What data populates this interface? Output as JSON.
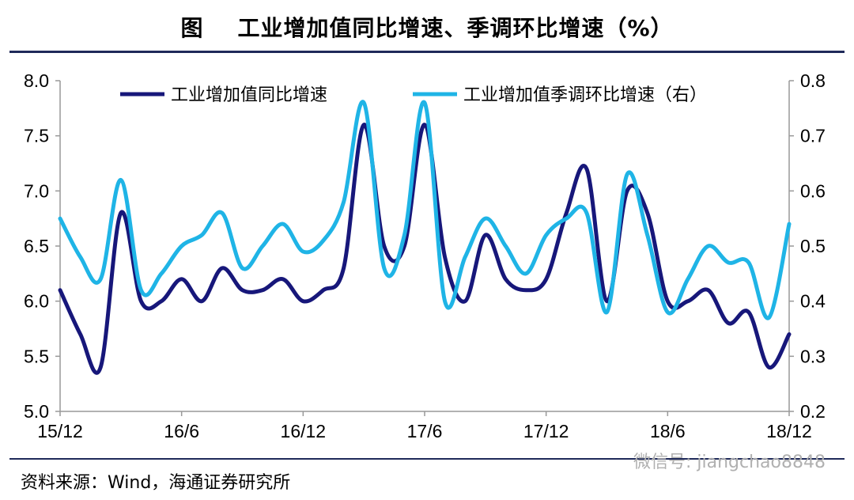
{
  "title": "图    工业增加值同比增速、季调环比增速（%）",
  "source": "资料来源：Wind，海通证券研究所",
  "watermark": "微信号: jiangchao8848",
  "colors": {
    "series1": "#17177a",
    "series2": "#1fb4e6",
    "axis": "#999999",
    "rule": "#1f2a5a"
  },
  "chart_data": {
    "type": "line",
    "x_tick_labels": [
      "15/12",
      "16/6",
      "16/12",
      "17/6",
      "17/12",
      "18/6",
      "18/12"
    ],
    "x": [
      "15/12",
      "16/1",
      "16/2",
      "16/3",
      "16/4",
      "16/5",
      "16/6",
      "16/7",
      "16/8",
      "16/9",
      "16/10",
      "16/11",
      "16/12",
      "17/1",
      "17/2",
      "17/3",
      "17/4",
      "17/5",
      "17/6",
      "17/7",
      "17/8",
      "17/9",
      "17/10",
      "17/11",
      "17/12",
      "18/1",
      "18/2",
      "18/3",
      "18/4",
      "18/5",
      "18/6",
      "18/7",
      "18/8",
      "18/9",
      "18/10",
      "18/11",
      "18/12"
    ],
    "left_axis": {
      "ylim": [
        5.0,
        8.0
      ],
      "ticks": [
        "5.0",
        "5.5",
        "6.0",
        "6.5",
        "7.0",
        "7.5",
        "8.0"
      ]
    },
    "right_axis": {
      "ylim": [
        0.2,
        0.8
      ],
      "ticks": [
        "0.2",
        "0.3",
        "0.4",
        "0.5",
        "0.6",
        "0.7",
        "0.8"
      ]
    },
    "series": [
      {
        "name": "工业增加值同比增速",
        "axis": "left",
        "values": [
          6.1,
          5.7,
          5.4,
          6.8,
          6.0,
          6.0,
          6.2,
          6.0,
          6.3,
          6.1,
          6.1,
          6.2,
          6.0,
          6.1,
          6.3,
          7.6,
          6.5,
          6.5,
          7.6,
          6.4,
          6.0,
          6.6,
          6.2,
          6.1,
          6.2,
          6.8,
          7.2,
          6.0,
          7.0,
          6.8,
          6.0,
          6.0,
          6.1,
          5.8,
          5.9,
          5.4,
          5.7
        ]
      },
      {
        "name": "工业增加值季调环比增速（右）",
        "axis": "right",
        "values": [
          0.55,
          0.48,
          0.44,
          0.62,
          0.42,
          0.45,
          0.5,
          0.52,
          0.56,
          0.46,
          0.5,
          0.54,
          0.49,
          0.51,
          0.58,
          0.76,
          0.46,
          0.52,
          0.76,
          0.4,
          0.48,
          0.55,
          0.5,
          0.45,
          0.52,
          0.55,
          0.56,
          0.38,
          0.63,
          0.52,
          0.38,
          0.44,
          0.5,
          0.47,
          0.47,
          0.37,
          0.54
        ]
      }
    ]
  }
}
